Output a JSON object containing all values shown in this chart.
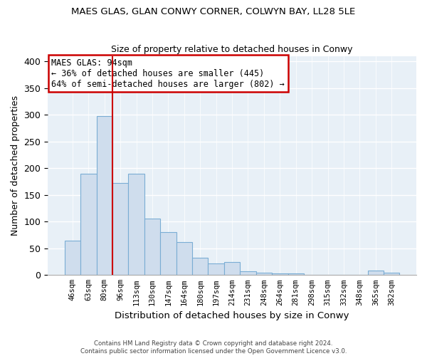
{
  "title": "MAES GLAS, GLAN CONWY CORNER, COLWYN BAY, LL28 5LE",
  "subtitle": "Size of property relative to detached houses in Conwy",
  "xlabel": "Distribution of detached houses by size in Conwy",
  "ylabel": "Number of detached properties",
  "all_labels": [
    "46sqm",
    "63sqm",
    "80sqm",
    "96sqm",
    "113sqm",
    "130sqm",
    "147sqm",
    "164sqm",
    "180sqm",
    "197sqm",
    "214sqm",
    "231sqm",
    "248sqm",
    "264sqm",
    "281sqm",
    "298sqm",
    "315sqm",
    "332sqm",
    "348sqm",
    "365sqm",
    "382sqm"
  ],
  "all_values": [
    65,
    190,
    298,
    172,
    190,
    105,
    80,
    62,
    33,
    22,
    25,
    7,
    5,
    3,
    3,
    1,
    0,
    0,
    1,
    8,
    5
  ],
  "bar_color": "#cfdded",
  "bar_edge_color": "#7aadd4",
  "vline_x": 2.5,
  "vline_color": "#cc0000",
  "annotation_title": "MAES GLAS: 94sqm",
  "annotation_line1": "← 36% of detached houses are smaller (445)",
  "annotation_line2": "64% of semi-detached houses are larger (802) →",
  "box_edge_color": "#cc0000",
  "ylim": [
    0,
    410
  ],
  "yticks": [
    0,
    50,
    100,
    150,
    200,
    250,
    300,
    350,
    400
  ],
  "footer1": "Contains HM Land Registry data © Crown copyright and database right 2024.",
  "footer2": "Contains public sector information licensed under the Open Government Licence v3.0.",
  "background_color": "#e8f0f7"
}
